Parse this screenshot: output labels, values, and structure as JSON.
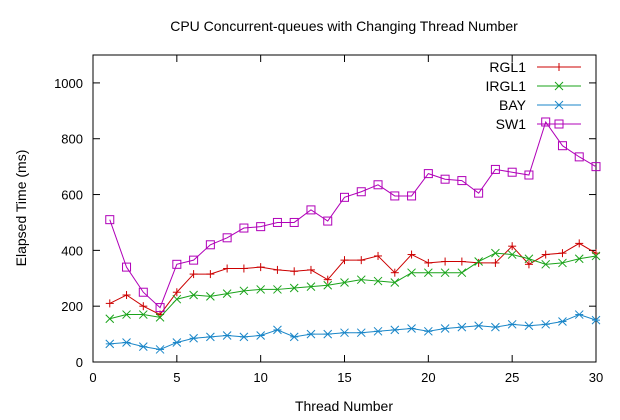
{
  "chart_data": {
    "type": "line",
    "title": "CPU Concurrent-queues with Changing Thread Number",
    "xlabel": "Thread Number",
    "ylabel": "Elapsed Time (ms)",
    "xlim": [
      0,
      30
    ],
    "ylim": [
      0,
      1100
    ],
    "xticks": [
      0,
      5,
      10,
      15,
      20,
      25,
      30
    ],
    "yticks": [
      0,
      200,
      400,
      600,
      800,
      1000
    ],
    "grid": false,
    "legend_position": "top-right",
    "x": [
      1,
      2,
      3,
      4,
      5,
      6,
      7,
      8,
      9,
      10,
      11,
      12,
      13,
      14,
      15,
      16,
      17,
      18,
      19,
      20,
      21,
      22,
      23,
      24,
      25,
      26,
      27,
      28,
      29,
      30
    ],
    "series": [
      {
        "name": "RGL1",
        "color": "#cc0000",
        "marker": "plus",
        "values": [
          210,
          240,
          200,
          170,
          250,
          315,
          315,
          335,
          335,
          340,
          330,
          325,
          330,
          295,
          365,
          365,
          380,
          320,
          385,
          355,
          360,
          360,
          355,
          355,
          415,
          350,
          385,
          390,
          425,
          390
        ]
      },
      {
        "name": "IRGL1",
        "color": "#1aa31a",
        "marker": "cross",
        "values": [
          155,
          170,
          170,
          160,
          225,
          240,
          235,
          245,
          255,
          260,
          260,
          265,
          270,
          275,
          285,
          295,
          290,
          285,
          320,
          320,
          320,
          320,
          360,
          390,
          385,
          370,
          350,
          355,
          370,
          380
        ]
      },
      {
        "name": "BAY",
        "color": "#1a86c8",
        "marker": "asterisk",
        "values": [
          65,
          70,
          55,
          45,
          70,
          85,
          90,
          95,
          90,
          95,
          115,
          90,
          100,
          100,
          105,
          105,
          110,
          115,
          120,
          110,
          120,
          125,
          130,
          125,
          135,
          130,
          135,
          145,
          170,
          150
        ]
      },
      {
        "name": "SW1",
        "color": "#b000b8",
        "marker": "square",
        "values": [
          510,
          340,
          250,
          195,
          350,
          365,
          420,
          445,
          480,
          485,
          500,
          500,
          545,
          505,
          590,
          610,
          635,
          595,
          595,
          675,
          655,
          650,
          605,
          690,
          680,
          670,
          860,
          775,
          735,
          700
        ]
      }
    ]
  }
}
